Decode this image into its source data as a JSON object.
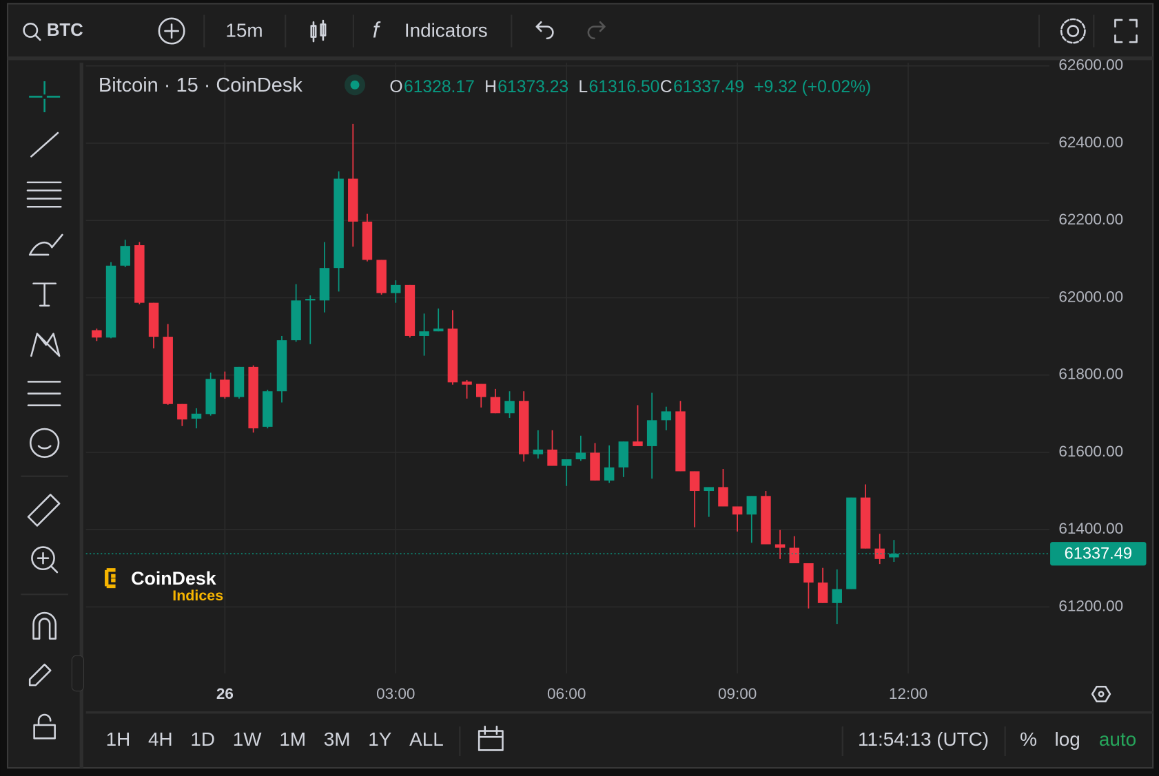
{
  "ui": {
    "search": "BTC",
    "interval": "15m",
    "indicators": "Indicators",
    "legend_title": "Bitcoin · 15 · CoinDesk",
    "legend_o": "O",
    "legend_h": "H",
    "legend_l": "L",
    "legend_c": "C",
    "legend_change": "+9.32 (+0.02%)",
    "watermark_1": "CoinDesk",
    "watermark_2": "Indices",
    "ranges": [
      "1H",
      "4H",
      "1D",
      "1W",
      "1M",
      "3M",
      "1Y",
      "ALL"
    ],
    "clock": "11:54:13 (UTC)",
    "percent": "%",
    "log": "log",
    "auto": "auto"
  },
  "chart_data": {
    "type": "candlestick",
    "up_color": "#089981",
    "down_color": "#f23645",
    "grid": true,
    "x": [
      -2.25,
      -2,
      -1.75,
      -1.5,
      -1.25,
      -1,
      -0.75,
      -0.5,
      -0.25,
      0,
      0.25,
      0.5,
      0.75,
      1,
      1.25,
      1.5,
      1.75,
      2,
      2.25,
      2.5,
      2.75,
      3,
      3.25,
      3.5,
      3.75,
      4,
      4.25,
      4.5,
      4.75,
      5,
      5.25,
      5.5,
      5.75,
      6,
      6.25,
      6.5,
      6.75,
      7,
      7.25,
      7.5,
      7.75,
      8,
      8.25,
      8.5,
      8.75,
      9,
      9.25,
      9.5,
      9.75,
      10,
      10.25,
      10.5,
      10.75,
      11,
      11.25,
      11.5,
      11.75
    ],
    "open": [
      61916,
      61897,
      62083,
      62136,
      61987,
      61899,
      61725,
      61687,
      61699,
      61788,
      61743,
      61821,
      61666,
      61758,
      61890,
      61993,
      61993,
      62077,
      62308,
      62197,
      62098,
      62012,
      62033,
      61901,
      61913,
      61920,
      61783,
      61777,
      61743,
      61701,
      61733,
      61595,
      61607,
      61565,
      61582,
      61599,
      61527,
      61561,
      61628,
      61616,
      61683,
      61706,
      61551,
      61500,
      61510,
      61460,
      61439,
      61487,
      61362,
      61353,
      61313,
      61263,
      61210,
      61246,
      61483,
      61351,
      61328.17
    ],
    "high": [
      61920,
      62092,
      62150,
      62144,
      61987,
      61932,
      61725,
      61714,
      61806,
      61809,
      61821,
      61825,
      61762,
      61901,
      62035,
      62006,
      62144,
      62327,
      62450,
      62217,
      62098,
      62045,
      62033,
      61959,
      61972,
      61968,
      61787,
      61777,
      61764,
      61758,
      61758,
      61657,
      61657,
      61582,
      61643,
      61624,
      61618,
      61628,
      61722,
      61754,
      61718,
      61733,
      61551,
      61510,
      61557,
      61460,
      61487,
      61500,
      61399,
      61383,
      61313,
      61301,
      61297,
      61483,
      61517,
      61389,
      61373.23
    ],
    "low": [
      61888,
      61895,
      62079,
      61983,
      61869,
      61723,
      61668,
      61662,
      61695,
      61739,
      61739,
      61651,
      61662,
      61729,
      61886,
      61880,
      61962,
      62016,
      62132,
      62094,
      62008,
      61987,
      61897,
      61850,
      61913,
      61775,
      61739,
      61716,
      61701,
      61689,
      61576,
      61584,
      61565,
      61513,
      61578,
      61527,
      61521,
      61536,
      61616,
      61532,
      61657,
      61551,
      61406,
      61433,
      61460,
      61395,
      61366,
      61362,
      61324,
      61313,
      61196,
      61210,
      61156,
      61246,
      61351,
      61311,
      61316.5
    ],
    "close": [
      61897,
      62083,
      62134,
      61987,
      61899,
      61725,
      61685,
      61700,
      61790,
      61743,
      61821,
      61662,
      61758,
      61890,
      61993,
      61997,
      62077,
      62308,
      62197,
      62098,
      62012,
      62033,
      61901,
      61913,
      61920,
      61781,
      61775,
      61743,
      61701,
      61733,
      61595,
      61607,
      61565,
      61582,
      61599,
      61527,
      61561,
      61628,
      61616,
      61683,
      61706,
      61551,
      61500,
      61510,
      61460,
      61439,
      61487,
      61362,
      61353,
      61313,
      61263,
      61210,
      61246,
      61483,
      61351,
      61324,
      61337.49
    ],
    "xlim": [
      -2.44,
      14.48
    ],
    "ylim": [
      61028,
      62608
    ],
    "xticks": [
      {
        "value": 0,
        "label": "26"
      },
      {
        "value": 3,
        "label": "03:00"
      },
      {
        "value": 6,
        "label": "06:00"
      },
      {
        "value": 9,
        "label": "09:00"
      },
      {
        "value": 12,
        "label": "12:00"
      }
    ],
    "yticks": [
      {
        "value": 61200,
        "label": "61200.00"
      },
      {
        "value": 61400,
        "label": "61400.00"
      },
      {
        "value": 61600,
        "label": "61600.00"
      },
      {
        "value": 61800,
        "label": "61800.00"
      },
      {
        "value": 62000,
        "label": "62000.00"
      },
      {
        "value": 62200,
        "label": "62200.00"
      },
      {
        "value": 62400,
        "label": "62400.00"
      },
      {
        "value": 62600,
        "label": "62600.00"
      }
    ]
  }
}
